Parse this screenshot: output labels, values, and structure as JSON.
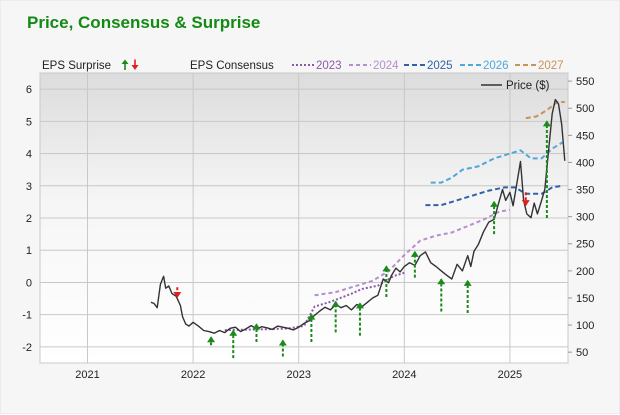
{
  "title": "Price, Consensus & Surprise",
  "chart_data": {
    "type": "line",
    "x_range": [
      2020.55,
      2025.55
    ],
    "x_ticks": [
      "2021",
      "2022",
      "2023",
      "2024",
      "2025"
    ],
    "x_tick_values": [
      2021.0,
      2022.0,
      2023.0,
      2024.0,
      2025.0
    ],
    "y_left": {
      "label": "EPS",
      "range": [
        -2.5,
        6.5
      ],
      "ticks": [
        -2,
        -1,
        0,
        1,
        2,
        3,
        4,
        5,
        6
      ]
    },
    "y_right": {
      "label": "Price ($)",
      "range": [
        30,
        565
      ],
      "ticks": [
        50,
        100,
        150,
        200,
        250,
        300,
        350,
        400,
        450,
        500,
        550
      ]
    },
    "legend": {
      "surprise_label": "EPS Surprise",
      "consensus_label": "EPS Consensus",
      "price_label": "Price ($)",
      "placement": "top"
    },
    "colors": {
      "2023": "#8a5aa8",
      "2024": "#b58fcc",
      "2025": "#2f62a8",
      "2026": "#4fa8dc",
      "2027": "#c8935a",
      "price": "#333333",
      "surprise_up": "#1a8a1a",
      "surprise_down": "#e02020"
    },
    "consensus_series": [
      {
        "name": "2023",
        "points": [
          [
            2022.3,
            -1.48
          ],
          [
            2022.7,
            -1.45
          ],
          [
            2022.9,
            -1.43
          ],
          [
            2023.05,
            -1.35
          ],
          [
            2023.15,
            -0.75
          ],
          [
            2023.3,
            -0.6
          ],
          [
            2023.5,
            -0.35
          ],
          [
            2023.6,
            -0.2
          ],
          [
            2023.75,
            -0.1
          ],
          [
            2023.9,
            0.2
          ],
          [
            2024.0,
            0.3
          ]
        ]
      },
      {
        "name": "2024",
        "points": [
          [
            2023.15,
            -0.4
          ],
          [
            2023.35,
            -0.3
          ],
          [
            2023.55,
            -0.1
          ],
          [
            2023.7,
            0.05
          ],
          [
            2023.85,
            0.35
          ],
          [
            2024.0,
            0.85
          ],
          [
            2024.15,
            1.3
          ],
          [
            2024.3,
            1.45
          ],
          [
            2024.45,
            1.55
          ],
          [
            2024.6,
            1.75
          ],
          [
            2024.75,
            1.95
          ],
          [
            2024.9,
            2.2
          ],
          [
            2025.0,
            2.25
          ]
        ]
      },
      {
        "name": "2025",
        "points": [
          [
            2024.2,
            2.4
          ],
          [
            2024.35,
            2.4
          ],
          [
            2024.45,
            2.5
          ],
          [
            2024.55,
            2.6
          ],
          [
            2024.65,
            2.7
          ],
          [
            2024.8,
            2.85
          ],
          [
            2024.95,
            2.95
          ],
          [
            2025.05,
            2.95
          ],
          [
            2025.15,
            2.75
          ],
          [
            2025.3,
            2.75
          ],
          [
            2025.4,
            2.95
          ],
          [
            2025.5,
            3.0
          ]
        ]
      },
      {
        "name": "2026",
        "points": [
          [
            2024.25,
            3.1
          ],
          [
            2024.35,
            3.1
          ],
          [
            2024.45,
            3.25
          ],
          [
            2024.55,
            3.5
          ],
          [
            2024.7,
            3.6
          ],
          [
            2024.85,
            3.85
          ],
          [
            2025.0,
            4.0
          ],
          [
            2025.1,
            4.1
          ],
          [
            2025.2,
            3.85
          ],
          [
            2025.3,
            3.85
          ],
          [
            2025.4,
            4.15
          ],
          [
            2025.5,
            4.35
          ]
        ]
      },
      {
        "name": "2027",
        "points": [
          [
            2025.15,
            5.1
          ],
          [
            2025.25,
            5.15
          ],
          [
            2025.35,
            5.35
          ],
          [
            2025.45,
            5.6
          ],
          [
            2025.52,
            5.6
          ]
        ]
      }
    ],
    "price_series": [
      [
        2021.6,
        142
      ],
      [
        2021.63,
        140
      ],
      [
        2021.66,
        132
      ],
      [
        2021.69,
        175
      ],
      [
        2021.72,
        190
      ],
      [
        2021.74,
        168
      ],
      [
        2021.77,
        172
      ],
      [
        2021.8,
        158
      ],
      [
        2021.84,
        153
      ],
      [
        2021.88,
        136
      ],
      [
        2021.9,
        115
      ],
      [
        2021.93,
        102
      ],
      [
        2021.96,
        98
      ],
      [
        2022.0,
        105
      ],
      [
        2022.05,
        98
      ],
      [
        2022.1,
        90
      ],
      [
        2022.15,
        88
      ],
      [
        2022.2,
        85
      ],
      [
        2022.25,
        90
      ],
      [
        2022.3,
        86
      ],
      [
        2022.35,
        94
      ],
      [
        2022.4,
        96
      ],
      [
        2022.45,
        88
      ],
      [
        2022.5,
        93
      ],
      [
        2022.55,
        99
      ],
      [
        2022.6,
        93
      ],
      [
        2022.65,
        97
      ],
      [
        2022.7,
        95
      ],
      [
        2022.75,
        92
      ],
      [
        2022.8,
        98
      ],
      [
        2022.85,
        96
      ],
      [
        2022.9,
        94
      ],
      [
        2022.95,
        91
      ],
      [
        2023.0,
        96
      ],
      [
        2023.05,
        103
      ],
      [
        2023.1,
        108
      ],
      [
        2023.15,
        118
      ],
      [
        2023.2,
        126
      ],
      [
        2023.25,
        133
      ],
      [
        2023.3,
        128
      ],
      [
        2023.35,
        138
      ],
      [
        2023.4,
        132
      ],
      [
        2023.45,
        136
      ],
      [
        2023.5,
        128
      ],
      [
        2023.55,
        138
      ],
      [
        2023.6,
        134
      ],
      [
        2023.65,
        142
      ],
      [
        2023.7,
        150
      ],
      [
        2023.75,
        155
      ],
      [
        2023.8,
        185
      ],
      [
        2023.85,
        178
      ],
      [
        2023.88,
        192
      ],
      [
        2023.92,
        205
      ],
      [
        2023.96,
        198
      ],
      [
        2024.0,
        208
      ],
      [
        2024.05,
        215
      ],
      [
        2024.1,
        210
      ],
      [
        2024.15,
        228
      ],
      [
        2024.2,
        235
      ],
      [
        2024.25,
        215
      ],
      [
        2024.3,
        208
      ],
      [
        2024.35,
        200
      ],
      [
        2024.4,
        192
      ],
      [
        2024.45,
        185
      ],
      [
        2024.5,
        212
      ],
      [
        2024.55,
        200
      ],
      [
        2024.6,
        228
      ],
      [
        2024.63,
        208
      ],
      [
        2024.66,
        236
      ],
      [
        2024.7,
        248
      ],
      [
        2024.75,
        272
      ],
      [
        2024.8,
        290
      ],
      [
        2024.85,
        295
      ],
      [
        2024.9,
        330
      ],
      [
        2024.93,
        350
      ],
      [
        2024.96,
        330
      ],
      [
        2025.0,
        345
      ],
      [
        2025.03,
        320
      ],
      [
        2025.06,
        355
      ],
      [
        2025.1,
        402
      ],
      [
        2025.13,
        330
      ],
      [
        2025.16,
        305
      ],
      [
        2025.2,
        298
      ],
      [
        2025.23,
        325
      ],
      [
        2025.26,
        305
      ],
      [
        2025.3,
        330
      ],
      [
        2025.33,
        350
      ],
      [
        2025.37,
        430
      ],
      [
        2025.4,
        490
      ],
      [
        2025.43,
        516
      ],
      [
        2025.46,
        508
      ],
      [
        2025.49,
        470
      ],
      [
        2025.52,
        403
      ]
    ],
    "surprises": [
      {
        "x": 2021.85,
        "from": -0.15,
        "to": -0.45,
        "dir": "down"
      },
      {
        "x": 2022.17,
        "from": -1.95,
        "to": -1.7,
        "dir": "up"
      },
      {
        "x": 2022.38,
        "from": -2.35,
        "to": -1.5,
        "dir": "up"
      },
      {
        "x": 2022.6,
        "from": -1.85,
        "to": -1.3,
        "dir": "up"
      },
      {
        "x": 2022.85,
        "from": -2.3,
        "to": -1.8,
        "dir": "up"
      },
      {
        "x": 2023.12,
        "from": -1.85,
        "to": -1.0,
        "dir": "up"
      },
      {
        "x": 2023.35,
        "from": -1.55,
        "to": -0.6,
        "dir": "up"
      },
      {
        "x": 2023.58,
        "from": -1.65,
        "to": -0.65,
        "dir": "up"
      },
      {
        "x": 2023.83,
        "from": -0.45,
        "to": 0.5,
        "dir": "up"
      },
      {
        "x": 2024.1,
        "from": 0.15,
        "to": 0.95,
        "dir": "up"
      },
      {
        "x": 2024.35,
        "from": -0.9,
        "to": 0.1,
        "dir": "up"
      },
      {
        "x": 2024.6,
        "from": -0.95,
        "to": 0.05,
        "dir": "up"
      },
      {
        "x": 2024.85,
        "from": 1.5,
        "to": 2.5,
        "dir": "up"
      },
      {
        "x": 2025.15,
        "from": 2.8,
        "to": 2.4,
        "dir": "down"
      },
      {
        "x": 2025.35,
        "from": 2.0,
        "to": 5.0,
        "dir": "up"
      }
    ]
  }
}
